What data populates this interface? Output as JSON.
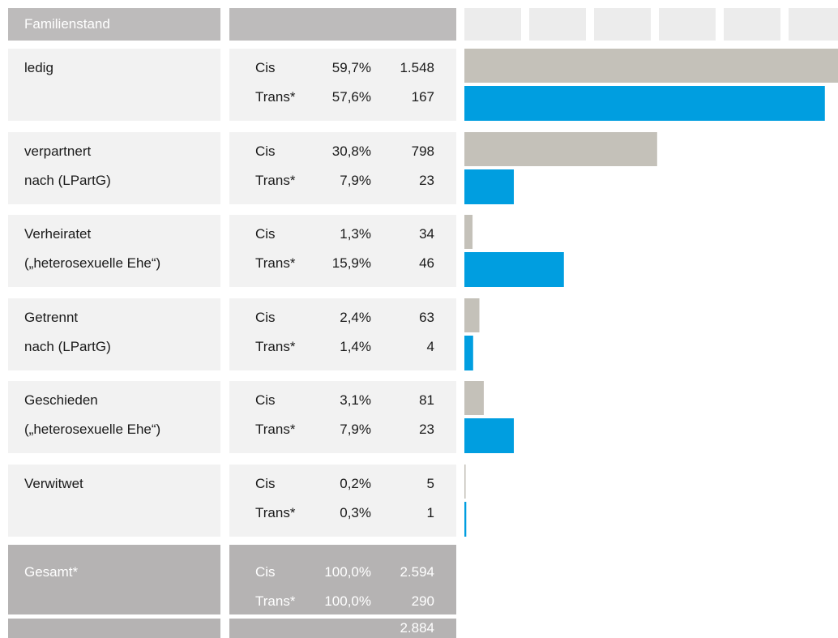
{
  "header": {
    "title": "Familienstand"
  },
  "colors": [
    "#c4c1b9",
    "#009ee0"
  ],
  "rows": [
    {
      "label": [
        "ledig"
      ],
      "groups": [
        {
          "name": "Cis",
          "percent": 59.7,
          "percent_label": "59,7%",
          "count": 1548,
          "count_label": "1.548"
        },
        {
          "name": "Trans*",
          "percent": 57.6,
          "percent_label": "57,6%",
          "count": 167
        }
      ]
    },
    {
      "label": [
        "verpartnert",
        "nach (LPartG)"
      ],
      "groups": [
        {
          "name": "Cis",
          "percent": 30.8,
          "percent_label": "30,8%",
          "count": 798
        },
        {
          "name": "Trans*",
          "percent": 7.9,
          "percent_label": "7,9%",
          "count": 23
        }
      ]
    },
    {
      "label": [
        "Verheiratet",
        "(„heterosexuelle Ehe“)"
      ],
      "groups": [
        {
          "name": "Cis",
          "percent": 1.3,
          "percent_label": "1,3%",
          "count": 34
        },
        {
          "name": "Trans*",
          "percent": 15.9,
          "percent_label": "15,9%",
          "count": 46
        }
      ]
    },
    {
      "label": [
        "Getrennt",
        "nach (LPartG)"
      ],
      "groups": [
        {
          "name": "Cis",
          "percent": 2.4,
          "percent_label": "2,4%",
          "count": 63
        },
        {
          "name": "Trans*",
          "percent": 1.4,
          "percent_label": "1,4%",
          "count": 4
        }
      ]
    },
    {
      "label": [
        "Geschieden",
        "(„heterosexuelle Ehe“)"
      ],
      "groups": [
        {
          "name": "Cis",
          "percent": 3.1,
          "percent_label": "3,1%",
          "count": 81
        },
        {
          "name": "Trans*",
          "percent": 7.9,
          "percent_label": "7,9%",
          "count": 23
        }
      ]
    },
    {
      "label": [
        "Verwitwet"
      ],
      "groups": [
        {
          "name": "Cis",
          "percent": 0.2,
          "percent_label": "0,2%",
          "count": 5
        },
        {
          "name": "Trans*",
          "percent": 0.3,
          "percent_label": "0,3%",
          "count": 1
        }
      ]
    }
  ],
  "total": {
    "label": "Gesamt*",
    "groups": [
      {
        "name": "Cis",
        "percent": 100,
        "percent_label": "100,0%",
        "count": 2594,
        "count_label": "2.594"
      },
      {
        "name": "Trans*",
        "percent": 100,
        "percent_label": "100,0%",
        "count": 290
      }
    ],
    "sum": 2884,
    "sum_label": "2.884"
  }
}
